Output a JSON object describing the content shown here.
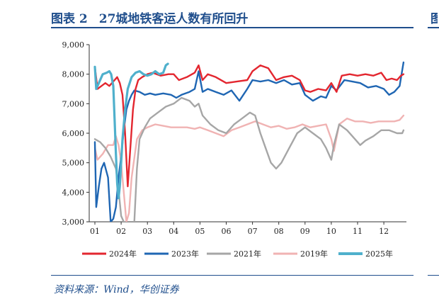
{
  "figure": {
    "label": "图表 2",
    "title": "27城地铁客运人数有所回升",
    "side_mark": "图",
    "source": "资料来源：Wind，华创证券"
  },
  "chart_data": {
    "type": "line",
    "title": "",
    "xlabel": "",
    "ylabel": "",
    "x_ticks": [
      "01",
      "02",
      "03",
      "04",
      "05",
      "06",
      "07",
      "08",
      "09",
      "10",
      "11",
      "12"
    ],
    "y_ticks": [
      "3,000",
      "4,000",
      "5,000",
      "6,000",
      "7,000",
      "8,000",
      "9,000"
    ],
    "xlim": [
      1,
      12.9
    ],
    "ylim": [
      3000,
      9000
    ],
    "grid": false,
    "legend_position": "bottom",
    "series": [
      {
        "name": "2024年",
        "color": "#e3262f",
        "x": [
          1.0,
          1.1,
          1.25,
          1.4,
          1.55,
          1.7,
          1.85,
          1.95,
          2.05,
          2.15,
          2.25,
          2.35,
          2.45,
          2.55,
          2.65,
          2.8,
          3.0,
          3.2,
          3.5,
          3.8,
          4.0,
          4.2,
          4.5,
          4.8,
          4.95,
          5.1,
          5.3,
          5.6,
          6.0,
          6.4,
          6.8,
          7.0,
          7.3,
          7.6,
          7.9,
          8.2,
          8.5,
          8.8,
          9.0,
          9.2,
          9.5,
          9.8,
          10.0,
          10.2,
          10.4,
          10.7,
          11.0,
          11.3,
          11.6,
          11.9,
          12.1,
          12.3,
          12.5,
          12.65,
          12.75
        ],
        "y": [
          8250,
          7500,
          7600,
          7700,
          7600,
          7750,
          7900,
          7700,
          7300,
          6000,
          4200,
          5500,
          6800,
          7500,
          7800,
          7900,
          8000,
          8050,
          7950,
          8000,
          8000,
          7800,
          7900,
          8050,
          8300,
          7800,
          8000,
          7900,
          7700,
          7750,
          7800,
          8100,
          8300,
          8200,
          7800,
          7900,
          7950,
          7800,
          7450,
          7400,
          7500,
          7450,
          7700,
          7400,
          7950,
          8000,
          7950,
          8000,
          7950,
          8050,
          7800,
          7850,
          7800,
          7950,
          8000
        ]
      },
      {
        "name": "2023年",
        "color": "#1f66b3",
        "x": [
          1.0,
          1.05,
          1.15,
          1.25,
          1.35,
          1.5,
          1.6,
          1.7,
          1.8,
          1.9,
          2.0,
          2.1,
          2.2,
          2.3,
          2.4,
          2.5,
          2.7,
          2.9,
          3.1,
          3.3,
          3.6,
          3.9,
          4.1,
          4.3,
          4.6,
          4.8,
          4.95,
          5.1,
          5.3,
          5.6,
          5.9,
          6.2,
          6.5,
          6.8,
          7.0,
          7.3,
          7.6,
          7.9,
          8.2,
          8.5,
          8.8,
          9.0,
          9.3,
          9.6,
          9.8,
          10.0,
          10.2,
          10.5,
          10.8,
          11.1,
          11.4,
          11.7,
          12.0,
          12.2,
          12.4,
          12.6,
          12.75
        ],
        "y": [
          5700,
          3500,
          4200,
          4800,
          5000,
          4500,
          3000,
          3100,
          3500,
          4500,
          5200,
          6100,
          6800,
          7100,
          7300,
          7450,
          7400,
          7300,
          7350,
          7300,
          7350,
          7300,
          7200,
          7300,
          7400,
          7500,
          8100,
          7400,
          7500,
          7400,
          7300,
          7450,
          7100,
          7500,
          7800,
          7750,
          7800,
          7700,
          7800,
          7650,
          7700,
          7300,
          7100,
          7250,
          7200,
          7600,
          7450,
          7800,
          7750,
          7700,
          7550,
          7600,
          7500,
          7300,
          7400,
          7600,
          8400
        ]
      },
      {
        "name": "2021年",
        "color": "#a6a6a6",
        "x": [
          1.0,
          1.2,
          1.4,
          1.6,
          1.8,
          1.9,
          2.0,
          2.1,
          2.2,
          2.3,
          2.4,
          2.5,
          2.6,
          2.7,
          2.9,
          3.1,
          3.4,
          3.7,
          4.0,
          4.3,
          4.6,
          4.8,
          4.95,
          5.1,
          5.4,
          5.7,
          6.0,
          6.3,
          6.6,
          6.9,
          7.1,
          7.3,
          7.5,
          7.7,
          7.9,
          8.1,
          8.4,
          8.7,
          9.0,
          9.3,
          9.6,
          9.8,
          10.0,
          10.1,
          10.3,
          10.6,
          10.9,
          11.1,
          11.3,
          11.6,
          11.9,
          12.2,
          12.5,
          12.7,
          12.75
        ],
        "y": [
          5800,
          5700,
          5500,
          5200,
          4800,
          4100,
          3200,
          3000,
          2900,
          2800,
          2700,
          3000,
          4800,
          5800,
          6200,
          6500,
          6700,
          6900,
          7000,
          7200,
          7100,
          6900,
          7000,
          6600,
          6300,
          6100,
          6000,
          6300,
          6500,
          6700,
          6600,
          6000,
          5500,
          5000,
          4800,
          5000,
          5500,
          6000,
          6200,
          6000,
          5800,
          5500,
          5100,
          5600,
          6300,
          6100,
          5800,
          5600,
          5750,
          5900,
          6100,
          6100,
          6000,
          6000,
          6100
        ]
      },
      {
        "name": "2019年",
        "color": "#f0b3b3",
        "x": [
          1.0,
          1.1,
          1.3,
          1.5,
          1.7,
          1.8,
          1.9,
          2.0,
          2.1,
          2.2,
          2.3,
          2.4,
          2.6,
          2.8,
          3.0,
          3.3,
          3.6,
          3.9,
          4.2,
          4.5,
          4.8,
          5.0,
          5.3,
          5.6,
          5.9,
          6.2,
          6.5,
          6.8,
          7.1,
          7.4,
          7.7,
          8.0,
          8.3,
          8.6,
          8.9,
          9.2,
          9.5,
          9.8,
          10.0,
          10.1,
          10.3,
          10.6,
          10.9,
          11.2,
          11.5,
          11.8,
          12.1,
          12.4,
          12.6,
          12.75
        ],
        "y": [
          5500,
          5100,
          5300,
          5600,
          5600,
          5900,
          5600,
          5000,
          4000,
          3000,
          3300,
          4500,
          5800,
          6100,
          6200,
          6300,
          6250,
          6200,
          6200,
          6200,
          6150,
          6200,
          6100,
          6000,
          5900,
          6100,
          6200,
          6300,
          6400,
          6300,
          6200,
          6250,
          6150,
          6200,
          6300,
          6200,
          6250,
          6300,
          5800,
          5400,
          6300,
          6500,
          6400,
          6400,
          6350,
          6400,
          6400,
          6400,
          6450,
          6600
        ]
      },
      {
        "name": "2025年",
        "color": "#4fb0cc",
        "x": [
          1.0,
          1.05,
          1.15,
          1.3,
          1.45,
          1.55,
          1.62,
          1.7,
          1.75,
          1.8,
          1.85,
          1.9,
          1.95,
          2.0,
          2.05,
          2.15,
          2.25,
          2.4,
          2.55,
          2.7,
          2.85,
          3.0,
          3.15,
          3.3,
          3.45,
          3.6,
          3.7,
          3.78
        ],
        "y": [
          8250,
          7500,
          7700,
          8000,
          8050,
          8100,
          8000,
          7600,
          6500,
          5300,
          4300,
          3800,
          4200,
          5000,
          5800,
          6800,
          7500,
          7900,
          8050,
          8100,
          8000,
          7950,
          8000,
          8100,
          8000,
          8050,
          8300,
          8350
        ]
      }
    ]
  }
}
